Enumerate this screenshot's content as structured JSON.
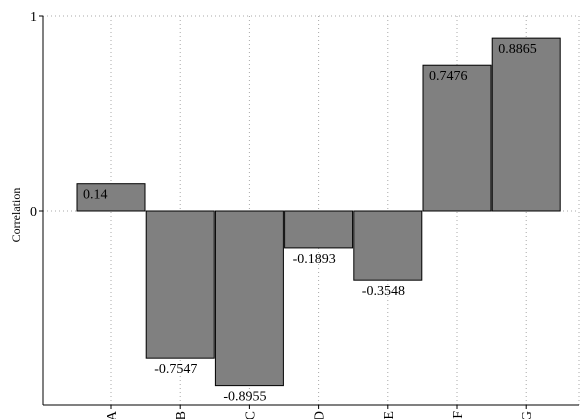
{
  "chart_data": {
    "type": "bar",
    "categories": [
      "A",
      "B",
      "C",
      "D",
      "E",
      "F",
      "G"
    ],
    "values": [
      0.14,
      -0.7547,
      -0.8955,
      -0.1893,
      -0.3548,
      0.7476,
      0.8865
    ],
    "data_labels": [
      "0.14",
      "-0.7547",
      "-0.8955",
      "-0.1893",
      "-0.3548",
      "0.7476",
      "0.8865"
    ],
    "title": "",
    "xlabel": "",
    "ylabel": "Correlation",
    "ylim": [
      -1,
      1
    ],
    "yticks": [
      {
        "value": 1,
        "label": "1"
      },
      {
        "value": 0,
        "label": "0"
      }
    ],
    "grid": true,
    "bar_color": "#808080",
    "bar_edge_color": "#000000",
    "grid_color": "#a9a9a9"
  }
}
